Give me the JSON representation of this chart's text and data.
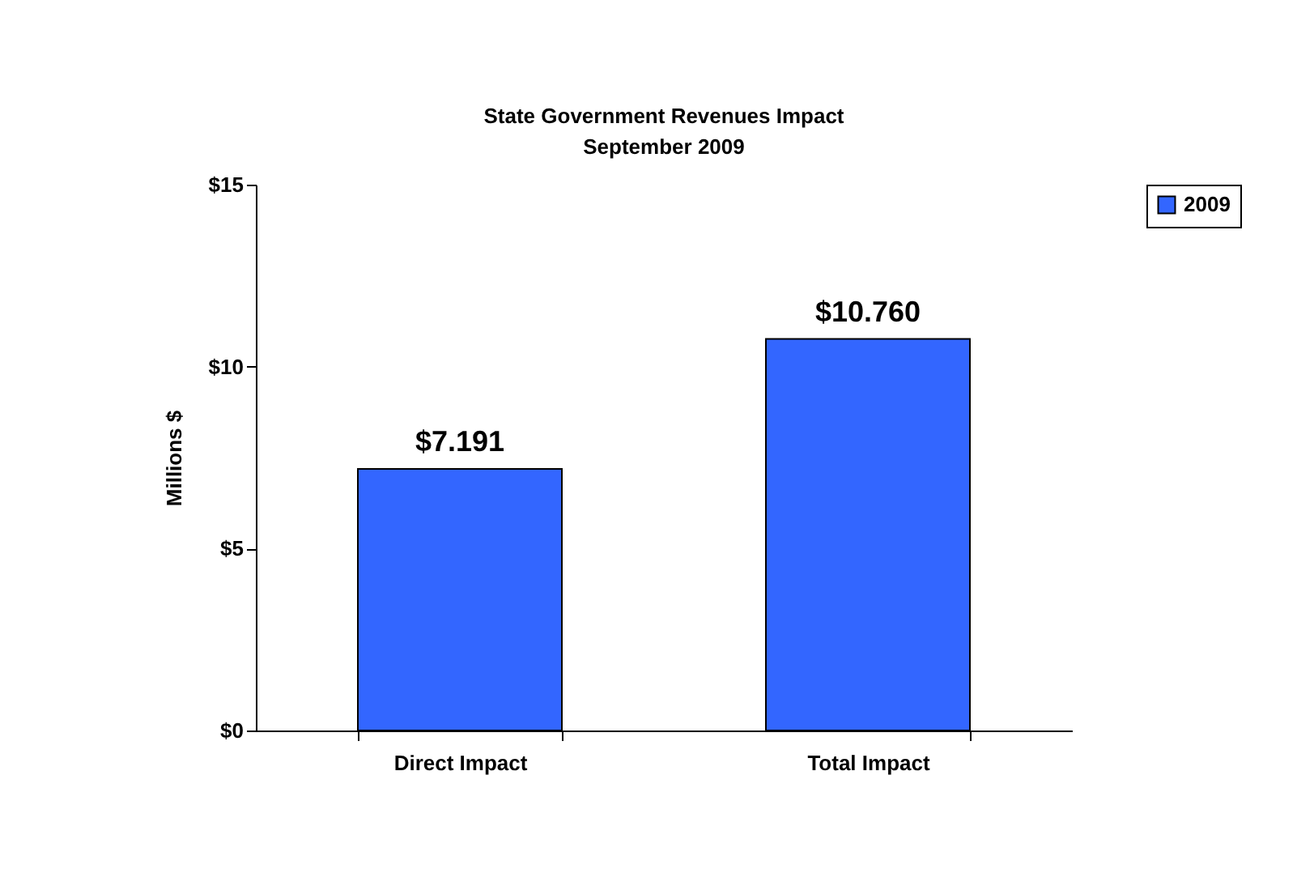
{
  "chart_data": {
    "type": "bar",
    "title": "State Government Revenues Impact",
    "subtitle": "September 2009",
    "ylabel": "Millions $",
    "categories": [
      "Direct Impact",
      "Total Impact"
    ],
    "series": [
      {
        "name": "2009",
        "color": "#3366ff",
        "values": [
          7.191,
          10.76
        ],
        "value_labels": [
          "$7.191",
          "$10.760"
        ]
      }
    ],
    "ylim": [
      0,
      15
    ],
    "yticks": [
      {
        "value": 0,
        "label": "$0"
      },
      {
        "value": 5,
        "label": "$5"
      },
      {
        "value": 10,
        "label": "$10"
      },
      {
        "value": 15,
        "label": "$15"
      }
    ],
    "legend": "right"
  }
}
